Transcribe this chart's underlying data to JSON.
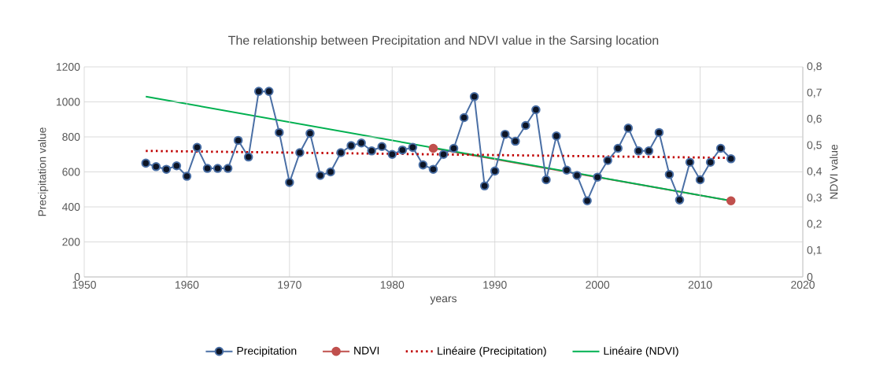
{
  "chart_data": {
    "type": "line",
    "title": "The relationship between Precipitation and NDVI value in the Sarsing location",
    "xlabel": "years",
    "ylabel": "Precipitation value",
    "y2label": "NDVI value",
    "xlim": [
      1950,
      2020
    ],
    "xticks": [
      1950,
      1960,
      1970,
      1980,
      1990,
      2000,
      2010,
      2020
    ],
    "ylim": [
      0,
      1200
    ],
    "yticks": [
      0,
      200,
      400,
      600,
      800,
      1000,
      1200
    ],
    "y2lim": [
      0,
      0.8
    ],
    "y2ticks": [
      0,
      {
        "value": 0.1,
        "label": "0,1"
      },
      {
        "value": 0.2,
        "label": "0,2"
      },
      {
        "value": 0.3,
        "label": "0,3"
      },
      {
        "value": 0.4,
        "label": "0,4"
      },
      {
        "value": 0.5,
        "label": "0,5"
      },
      {
        "value": 0.6,
        "label": "0,6"
      },
      {
        "value": 0.7,
        "label": "0,7"
      },
      {
        "value": 0.8,
        "label": "0,8"
      }
    ],
    "grid": true,
    "legend": "bottom",
    "series": [
      {
        "name": "Precipitation",
        "color": "#4a6fa5",
        "marker": "circle",
        "line_style": "solid",
        "x": [
          1956,
          1957,
          1958,
          1959,
          1960,
          1961,
          1962,
          1963,
          1964,
          1965,
          1966,
          1967,
          1968,
          1969,
          1970,
          1971,
          1972,
          1973,
          1974,
          1975,
          1976,
          1977,
          1978,
          1979,
          1980,
          1981,
          1982,
          1983,
          1984,
          1985,
          1986,
          1987,
          1988,
          1989,
          1990,
          1991,
          1992,
          1993,
          1994,
          1995,
          1996,
          1997,
          1998,
          1999,
          2000,
          2001,
          2002,
          2003,
          2004,
          2005,
          2006,
          2007,
          2008,
          2009,
          2010,
          2011,
          2012,
          2013
        ],
        "values": [
          650,
          630,
          615,
          635,
          575,
          740,
          620,
          620,
          620,
          780,
          685,
          1060,
          1060,
          825,
          540,
          710,
          820,
          580,
          600,
          710,
          750,
          765,
          720,
          745,
          700,
          725,
          740,
          640,
          615,
          700,
          735,
          910,
          1030,
          520,
          605,
          815,
          775,
          865,
          955,
          555,
          805,
          610,
          580,
          435,
          570,
          665,
          735,
          850,
          720,
          720,
          825,
          585,
          440,
          655,
          555,
          655,
          735,
          675
        ]
      },
      {
        "name": "NDVI",
        "color": "#c0504d",
        "marker": "circle",
        "line_style": "solid",
        "axis": "y2",
        "x": [
          1984,
          2013
        ],
        "values": [
          0.49,
          0.29
        ]
      },
      {
        "name": "Linéaire (Precipitation)",
        "color": "#c00000",
        "marker": "none",
        "line_style": "dotted",
        "x": [
          1956,
          2013
        ],
        "values": [
          720,
          680
        ]
      },
      {
        "name": "Linéaire (NDVI)",
        "color": "#00b050",
        "marker": "none",
        "line_style": "solid",
        "axis": "y2",
        "x": [
          1956,
          2013
        ],
        "values": [
          0.687,
          0.29
        ]
      }
    ]
  }
}
